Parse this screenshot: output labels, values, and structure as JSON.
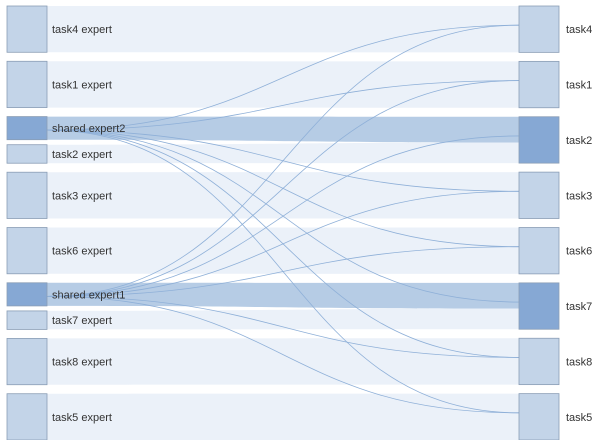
{
  "colors": {
    "node_light": "#c3d4e8",
    "node_dark": "#86a8d4",
    "node_border": "#8a9db5",
    "band_light": "#e8eef8",
    "band_dark": "#aec6e2",
    "thin_link": "#8fb0d8",
    "label": "#333333"
  },
  "chart_data": {
    "type": "sankey",
    "sources": [
      {
        "id": "s_task4",
        "label": "task4 expert",
        "value": 1,
        "style": "light"
      },
      {
        "id": "s_task1",
        "label": "task1 expert",
        "value": 1,
        "style": "light"
      },
      {
        "id": "s_shared2",
        "label": "shared expert2",
        "value": 0.5,
        "style": "dark"
      },
      {
        "id": "s_task2",
        "label": "task2 expert",
        "value": 0.4,
        "style": "light"
      },
      {
        "id": "s_task3",
        "label": "task3 expert",
        "value": 1,
        "style": "light"
      },
      {
        "id": "s_task6",
        "label": "task6 expert",
        "value": 1,
        "style": "light"
      },
      {
        "id": "s_shared1",
        "label": "shared expert1",
        "value": 0.5,
        "style": "dark"
      },
      {
        "id": "s_task7",
        "label": "task7 expert",
        "value": 0.4,
        "style": "light"
      },
      {
        "id": "s_task8",
        "label": "task8 expert",
        "value": 1,
        "style": "light"
      },
      {
        "id": "s_task5",
        "label": "task5 expert",
        "value": 1,
        "style": "light"
      }
    ],
    "targets": [
      {
        "id": "t_task4",
        "label": "task4",
        "value": 1,
        "style": "light"
      },
      {
        "id": "t_task1",
        "label": "task1",
        "value": 1,
        "style": "light"
      },
      {
        "id": "t_task2",
        "label": "task2",
        "value": 1,
        "style": "dark"
      },
      {
        "id": "t_task3",
        "label": "task3",
        "value": 1,
        "style": "light"
      },
      {
        "id": "t_task6",
        "label": "task6",
        "value": 1,
        "style": "light"
      },
      {
        "id": "t_task7",
        "label": "task7",
        "value": 1,
        "style": "dark"
      },
      {
        "id": "t_task8",
        "label": "task8",
        "value": 1,
        "style": "light"
      },
      {
        "id": "t_task5",
        "label": "task5",
        "value": 1,
        "style": "light"
      }
    ],
    "links": [
      {
        "source": "s_task4",
        "target": "t_task4",
        "kind": "band"
      },
      {
        "source": "s_task1",
        "target": "t_task1",
        "kind": "band"
      },
      {
        "source": "s_shared2",
        "target": "t_task2",
        "kind": "band"
      },
      {
        "source": "s_task2",
        "target": "t_task2",
        "kind": "band"
      },
      {
        "source": "s_task3",
        "target": "t_task3",
        "kind": "band"
      },
      {
        "source": "s_task6",
        "target": "t_task6",
        "kind": "band"
      },
      {
        "source": "s_shared1",
        "target": "t_task7",
        "kind": "band"
      },
      {
        "source": "s_task7",
        "target": "t_task7",
        "kind": "band"
      },
      {
        "source": "s_task8",
        "target": "t_task8",
        "kind": "band"
      },
      {
        "source": "s_task5",
        "target": "t_task5",
        "kind": "band"
      },
      {
        "source": "s_shared2",
        "target": "t_task4",
        "kind": "thin"
      },
      {
        "source": "s_shared2",
        "target": "t_task1",
        "kind": "thin"
      },
      {
        "source": "s_shared2",
        "target": "t_task3",
        "kind": "thin"
      },
      {
        "source": "s_shared2",
        "target": "t_task6",
        "kind": "thin"
      },
      {
        "source": "s_shared2",
        "target": "t_task7",
        "kind": "thin"
      },
      {
        "source": "s_shared2",
        "target": "t_task8",
        "kind": "thin"
      },
      {
        "source": "s_shared2",
        "target": "t_task5",
        "kind": "thin"
      },
      {
        "source": "s_shared1",
        "target": "t_task4",
        "kind": "thin"
      },
      {
        "source": "s_shared1",
        "target": "t_task1",
        "kind": "thin"
      },
      {
        "source": "s_shared1",
        "target": "t_task2",
        "kind": "thin"
      },
      {
        "source": "s_shared1",
        "target": "t_task3",
        "kind": "thin"
      },
      {
        "source": "s_shared1",
        "target": "t_task6",
        "kind": "thin"
      },
      {
        "source": "s_shared1",
        "target": "t_task8",
        "kind": "thin"
      },
      {
        "source": "s_shared1",
        "target": "t_task5",
        "kind": "thin"
      }
    ]
  }
}
